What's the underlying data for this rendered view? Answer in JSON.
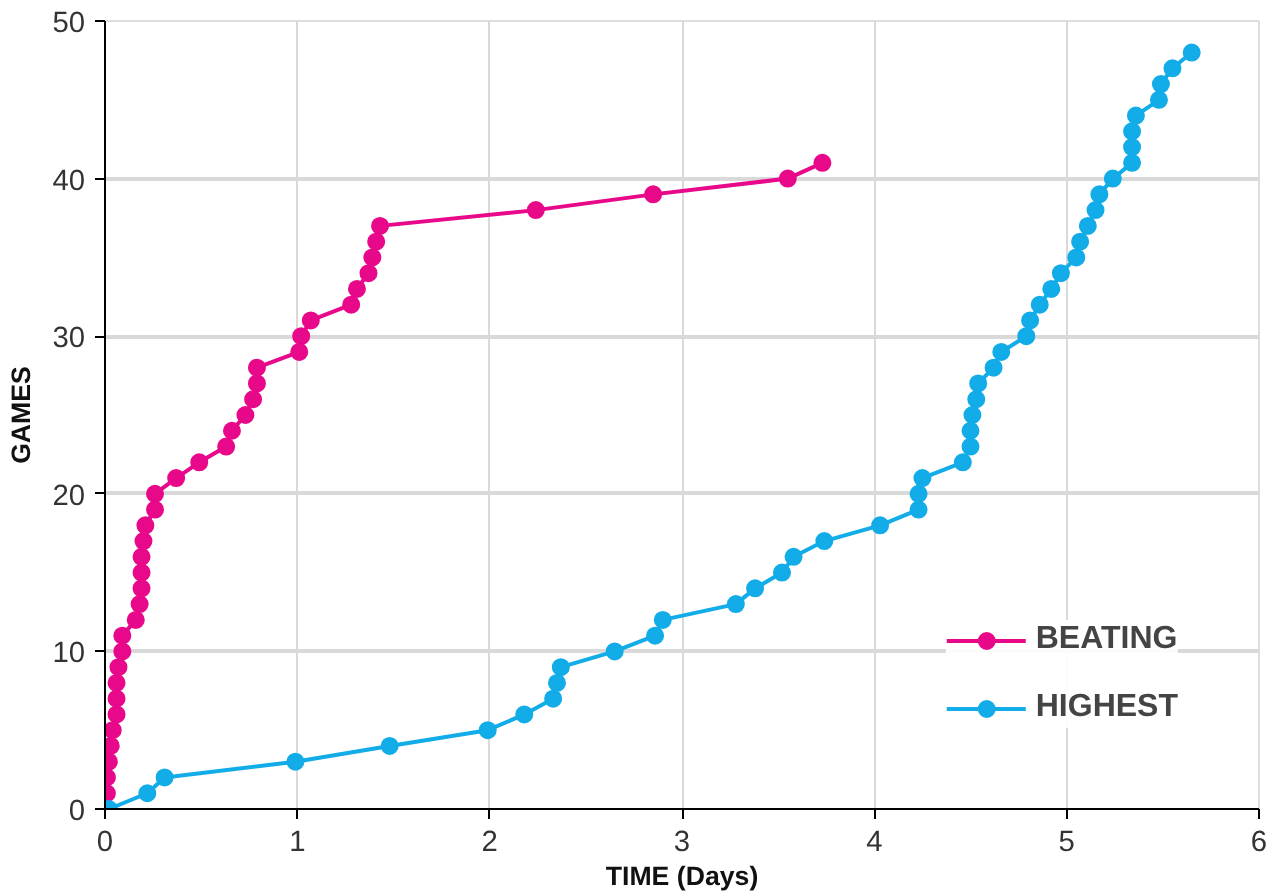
{
  "chart_data": {
    "type": "line",
    "xlabel": "TIME (Days)",
    "ylabel": "GAMES",
    "xlim": [
      0,
      6
    ],
    "ylim": [
      0,
      50
    ],
    "xticks": [
      0,
      1,
      2,
      3,
      4,
      5,
      6
    ],
    "yticks": [
      0,
      10,
      20,
      30,
      40,
      50
    ],
    "grid": true,
    "legend": "bottom right",
    "marker": "circle",
    "line_style": "solid",
    "series": [
      {
        "name": "BEATING",
        "color": "#e8088a",
        "x": [
          0.0,
          0.01,
          0.01,
          0.02,
          0.03,
          0.04,
          0.06,
          0.06,
          0.06,
          0.07,
          0.09,
          0.09,
          0.16,
          0.18,
          0.19,
          0.19,
          0.19,
          0.2,
          0.21,
          0.26,
          0.26,
          0.37,
          0.49,
          0.63,
          0.66,
          0.73,
          0.77,
          0.79,
          0.79,
          1.01,
          1.02,
          1.07,
          1.28,
          1.31,
          1.37,
          1.39,
          1.41,
          1.43,
          2.24,
          2.85,
          3.55,
          3.73
        ],
        "values": [
          0,
          1,
          2,
          3,
          4,
          5,
          6,
          7,
          8,
          9,
          10,
          11,
          12,
          13,
          14,
          15,
          16,
          17,
          18,
          19,
          20,
          21,
          22,
          23,
          24,
          25,
          26,
          27,
          28,
          29,
          30,
          31,
          32,
          33,
          34,
          35,
          36,
          37,
          38,
          39,
          40,
          41
        ]
      },
      {
        "name": "HIGHEST",
        "color": "#12ace8",
        "x": [
          0.02,
          0.22,
          0.31,
          0.99,
          1.48,
          1.99,
          2.18,
          2.33,
          2.35,
          2.37,
          2.65,
          2.86,
          2.9,
          3.28,
          3.38,
          3.52,
          3.58,
          3.74,
          4.03,
          4.23,
          4.23,
          4.25,
          4.46,
          4.5,
          4.5,
          4.51,
          4.53,
          4.54,
          4.62,
          4.66,
          4.79,
          4.81,
          4.86,
          4.92,
          4.97,
          5.05,
          5.07,
          5.11,
          5.15,
          5.17,
          5.24,
          5.34,
          5.34,
          5.34,
          5.36,
          5.48,
          5.49,
          5.55,
          5.65
        ],
        "values": [
          0,
          1,
          2,
          3,
          4,
          5,
          6,
          7,
          8,
          9,
          10,
          11,
          12,
          13,
          14,
          15,
          16,
          17,
          18,
          19,
          20,
          21,
          22,
          23,
          24,
          25,
          26,
          27,
          28,
          29,
          30,
          31,
          32,
          33,
          34,
          35,
          36,
          37,
          38,
          39,
          40,
          41,
          42,
          43,
          44,
          45,
          46,
          47,
          48
        ]
      }
    ]
  }
}
